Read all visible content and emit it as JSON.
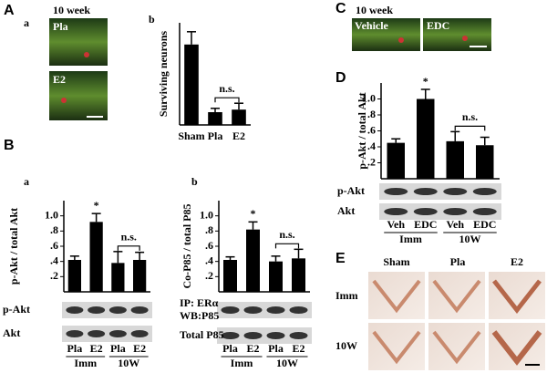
{
  "panels": {
    "A": "A",
    "A_a": "a",
    "A_b": "b",
    "A_week": "10 week",
    "A_img1": "Pla",
    "A_img2": "E2",
    "B": "B",
    "B_a": "a",
    "B_b": "b",
    "C": "C",
    "C_week": "10 week",
    "C_img1": "Vehicle",
    "C_img2": "EDC",
    "D": "D",
    "E": "E",
    "E_cols": [
      "Sham",
      "Pla",
      "E2"
    ],
    "E_rows": [
      "Imm",
      "10W"
    ]
  },
  "chart_data": [
    {
      "type": "bar",
      "ylabel": "Surviving neurons",
      "categories": [
        "Sham",
        "Pla",
        "E2"
      ],
      "values": [
        63,
        10,
        12
      ],
      "errors": [
        10,
        3,
        5
      ],
      "color": "#000000",
      "ylim": [
        0,
        80
      ],
      "bracket_label": "n.s."
    },
    {
      "type": "bar",
      "ylabel": "p-Akt / total Akt",
      "categories": [
        "Pla",
        "E2",
        "Pla",
        "E2"
      ],
      "groups": [
        "Imm",
        "10W"
      ],
      "values": [
        0.42,
        0.92,
        0.38,
        0.42
      ],
      "errors": [
        0.05,
        0.11,
        0.15,
        0.1
      ],
      "markers": [
        null,
        "*",
        null,
        null
      ],
      "color": "#000000",
      "ylim": [
        0,
        1.2
      ],
      "yticks": [
        {
          "value": 0.2,
          "label": ".2"
        },
        {
          "value": 0.4,
          "label": ".4"
        },
        {
          "value": 0.6,
          "label": ".6"
        },
        {
          "value": 0.8,
          "label": ".8"
        },
        {
          "value": 1.0,
          "label": "1.0"
        }
      ],
      "bracket_label": "n.s.",
      "row_labels": [
        "p-Akt",
        "Akt"
      ]
    },
    {
      "type": "bar",
      "ylabel": "Co-P85 / total P85",
      "categories": [
        "Pla",
        "E2",
        "Pla",
        "E2"
      ],
      "groups": [
        "Imm",
        "10W"
      ],
      "values": [
        0.42,
        0.82,
        0.4,
        0.44
      ],
      "errors": [
        0.04,
        0.1,
        0.07,
        0.12
      ],
      "markers": [
        null,
        "*",
        null,
        null
      ],
      "color": "#000000",
      "ylim": [
        0,
        1.2
      ],
      "yticks": [
        {
          "value": 0.2,
          "label": ".2"
        },
        {
          "value": 0.4,
          "label": ".4"
        },
        {
          "value": 0.6,
          "label": ".6"
        },
        {
          "value": 0.8,
          "label": ".8"
        },
        {
          "value": 1.0,
          "label": "1.0"
        }
      ],
      "bracket_label": "n.s.",
      "row_labels": [
        "IP: ERα",
        "WB:P85",
        "Total P85"
      ]
    },
    {
      "type": "bar",
      "ylabel": "p-Akt / total Akt",
      "categories": [
        "Veh",
        "EDC",
        "Veh",
        "EDC"
      ],
      "groups": [
        "Imm",
        "10W"
      ],
      "values": [
        0.45,
        1.0,
        0.47,
        0.42
      ],
      "errors": [
        0.05,
        0.12,
        0.12,
        0.1
      ],
      "markers": [
        null,
        "*",
        null,
        null
      ],
      "color": "#000000",
      "ylim": [
        0,
        1.2
      ],
      "yticks": [
        {
          "value": 0.2,
          "label": ".2"
        },
        {
          "value": 0.4,
          "label": ".4"
        },
        {
          "value": 0.6,
          "label": ".6"
        },
        {
          "value": 0.8,
          "label": ".8"
        },
        {
          "value": 1.0,
          "label": "1.0"
        }
      ],
      "bracket_label": "n.s.",
      "row_labels": [
        "p-Akt",
        "Akt"
      ]
    }
  ]
}
